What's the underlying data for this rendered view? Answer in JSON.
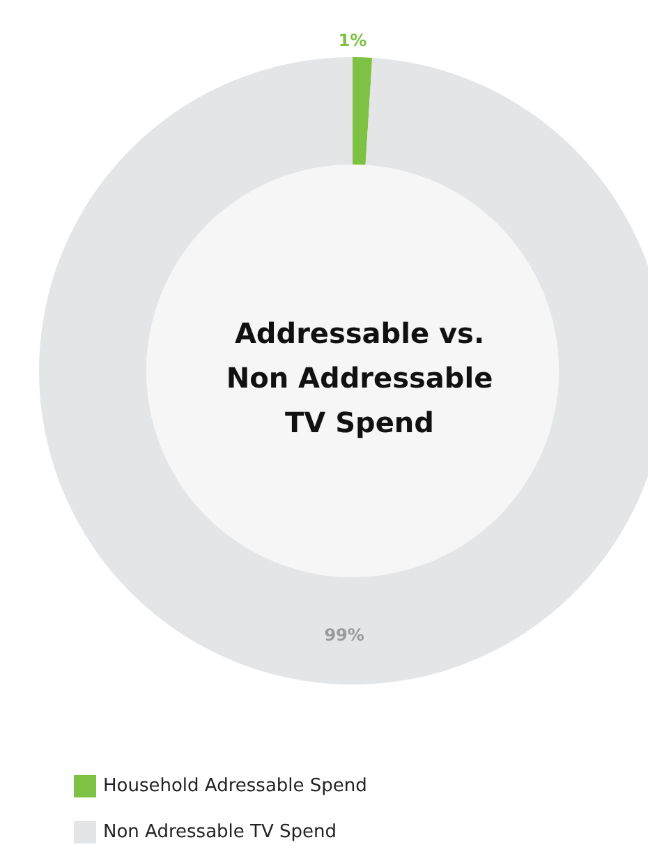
{
  "chart_data": {
    "type": "donut",
    "title": "Addressable vs.\nNon Addressable\nTV Spend",
    "categories": [
      "Household Adressable Spend",
      "Non Adressable TV Spend"
    ],
    "values": [
      1,
      99
    ],
    "colors": [
      "#7dc242",
      "#e4e5e7"
    ],
    "value_labels": [
      "1%",
      "99%"
    ],
    "legend": "bottom left"
  }
}
